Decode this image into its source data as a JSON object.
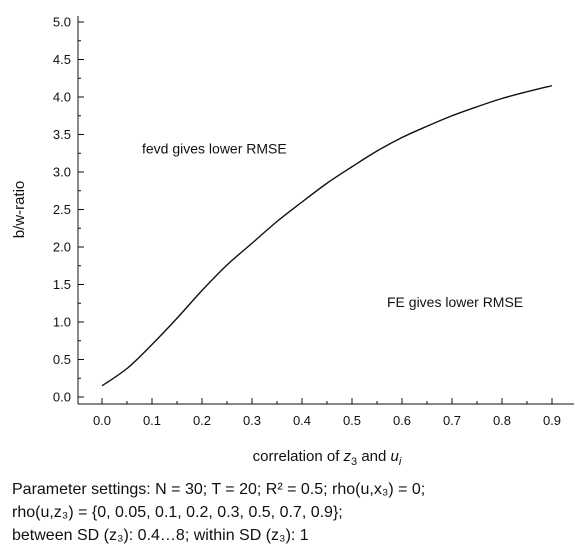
{
  "chart_data": {
    "type": "line",
    "ylabel": "b/w-ratio",
    "xlabel": "",
    "xlim": [
      0.0,
      0.9
    ],
    "ylim": [
      0.0,
      5.0
    ],
    "xticks": [
      "0.0",
      "0.1",
      "0.2",
      "0.3",
      "0.4",
      "0.5",
      "0.6",
      "0.7",
      "0.8",
      "0.9"
    ],
    "yticks": [
      "0.0",
      "0.5",
      "1.0",
      "1.5",
      "2.0",
      "2.5",
      "3.0",
      "3.5",
      "4.0",
      "4.5",
      "5.0"
    ],
    "grid": false,
    "series": [
      {
        "x": [
          0.0,
          0.05,
          0.1,
          0.15,
          0.2,
          0.25,
          0.3,
          0.35,
          0.4,
          0.45,
          0.5,
          0.55,
          0.6,
          0.65,
          0.7,
          0.75,
          0.8,
          0.85,
          0.9
        ],
        "values": [
          0.15,
          0.38,
          0.7,
          1.05,
          1.42,
          1.76,
          2.05,
          2.34,
          2.6,
          2.85,
          3.07,
          3.28,
          3.46,
          3.61,
          3.75,
          3.87,
          3.98,
          4.07,
          4.15
        ]
      }
    ],
    "annotations": [
      {
        "text": "fevd gives lower RMSE",
        "x": 0.08,
        "y": 3.25
      },
      {
        "text": "FE gives lower RMSE",
        "x": 0.57,
        "y": 1.2
      }
    ]
  },
  "xlabel_parts": {
    "prefix": "correlation of ",
    "var1": "z",
    "var1_sub": "3",
    "mid": " and ",
    "var2": "u",
    "var2_sub": "i"
  },
  "caption": {
    "line1": "Parameter settings: N = 30; T = 20; R² = 0.5; rho(u,x₃) = 0;",
    "line2": "rho(u,z₃) = {0, 0.05, 0.1, 0.2, 0.3, 0.5, 0.7, 0.9};",
    "line3": "between SD (z₃): 0.4…8; within SD (z₃): 1"
  }
}
